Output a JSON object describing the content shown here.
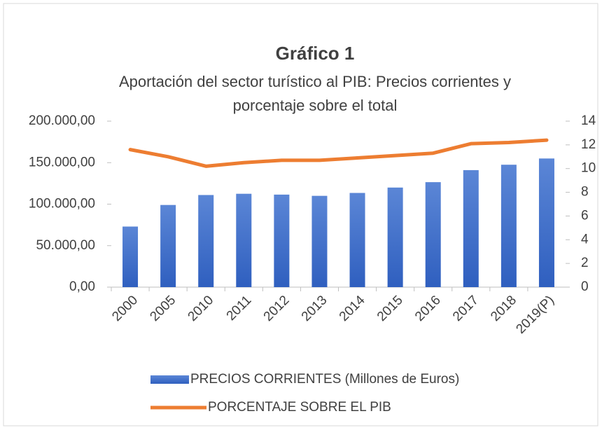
{
  "chart_data": {
    "type": "bar-line",
    "title": "Gráfico 1",
    "subtitle": [
      "Aportación del sector turístico al PIB: Precios corrientes y",
      "porcentaje sobre el total"
    ],
    "categories": [
      "2000",
      "2005",
      "2010",
      "2011",
      "2012",
      "2013",
      "2014",
      "2015",
      "2016",
      "2017",
      "2018",
      "2019(P)"
    ],
    "series": [
      {
        "name": "PRECIOS CORRIENTES (Millones de Euros)",
        "type": "bar",
        "color": "#4472c4",
        "values": [
          73000,
          99000,
          111000,
          112500,
          111500,
          110000,
          113500,
          120000,
          126500,
          141000,
          147500,
          155000
        ]
      },
      {
        "name": "PORCENTAJE SOBRE EL PIB",
        "type": "line",
        "color": "#ed7d31",
        "axis": "y2",
        "values": [
          11.6,
          11.0,
          10.2,
          10.5,
          10.7,
          10.7,
          10.9,
          11.1,
          11.3,
          12.1,
          12.2,
          12.4
        ]
      }
    ],
    "ylim": [
      0,
      200000
    ],
    "yticks": [
      {
        "value": 0,
        "label": "0,00"
      },
      {
        "value": 50000,
        "label": "50.000,00"
      },
      {
        "value": 100000,
        "label": "100.000,00"
      },
      {
        "value": 150000,
        "label": "150.000,00"
      },
      {
        "value": 200000,
        "label": "200.000,00"
      }
    ],
    "y2lim": [
      0,
      14
    ],
    "y2ticks": [
      0,
      2,
      4,
      6,
      8,
      10,
      12,
      14
    ],
    "grid": false,
    "legend": "bottom"
  }
}
